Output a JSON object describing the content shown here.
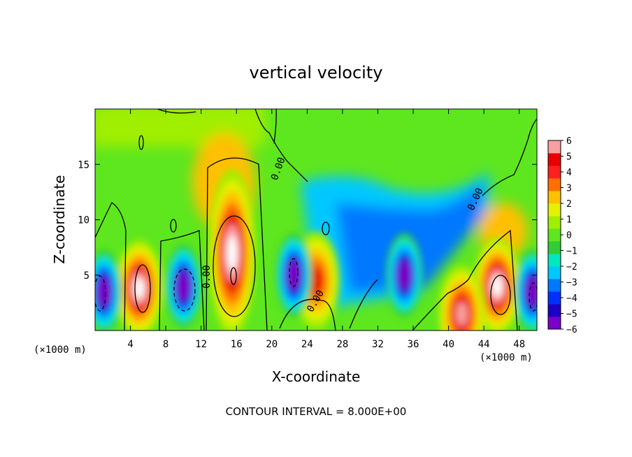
{
  "chart_data": {
    "type": "heatmap",
    "title": "vertical velocity",
    "xlabel": "X-coordinate",
    "ylabel": "Z-coordinate",
    "x_unit_label": "(×1000 m)",
    "x_ticks": [
      4,
      8,
      12,
      16,
      20,
      24,
      28,
      32,
      36,
      40,
      44,
      48
    ],
    "y_ticks": [
      5,
      10,
      15
    ],
    "xlim": [
      0,
      50
    ],
    "ylim": [
      0,
      20
    ],
    "footer": "CONTOUR INTERVAL = 8.000E+00",
    "contour_labels": [
      "0.00",
      "0.00",
      "0.00",
      "0.00"
    ],
    "colorbar": {
      "ticks": [
        "6",
        "5",
        "4",
        "3",
        "2",
        "1",
        "0",
        "−1",
        "−2",
        "−3",
        "−4",
        "−5",
        "−6"
      ],
      "range": [
        -6,
        6
      ],
      "colors": [
        "#7b00c8",
        "#1c00c8",
        "#0030ff",
        "#0078ff",
        "#00c8ff",
        "#00e8c0",
        "#32cd32",
        "#5ee61e",
        "#a0ee00",
        "#e6f000",
        "#ffc000",
        "#ff7000",
        "#ff2020",
        "#e80000",
        "#f8a0a0"
      ]
    },
    "features": [
      {
        "kind": "updraft",
        "x": 5,
        "z": 3.8,
        "peak": 6
      },
      {
        "kind": "updraft",
        "x": 15.5,
        "z": 7,
        "peak": 6
      },
      {
        "kind": "updraft",
        "x": 45.5,
        "z": 4,
        "peak": 6
      },
      {
        "kind": "updraft",
        "x": 41.5,
        "z": 1.5,
        "peak": 5
      },
      {
        "kind": "updraft",
        "x": 25,
        "z": 4.5,
        "peak": 4
      },
      {
        "kind": "downdraft",
        "x": 1,
        "z": 3.5,
        "peak": -6
      },
      {
        "kind": "downdraft",
        "x": 10,
        "z": 4,
        "peak": -6
      },
      {
        "kind": "downdraft",
        "x": 22.5,
        "z": 5,
        "peak": -6
      },
      {
        "kind": "downdraft",
        "x": 35,
        "z": 5,
        "peak": -6
      },
      {
        "kind": "downdraft",
        "x": 49.5,
        "z": 3.5,
        "peak": -6
      }
    ]
  }
}
